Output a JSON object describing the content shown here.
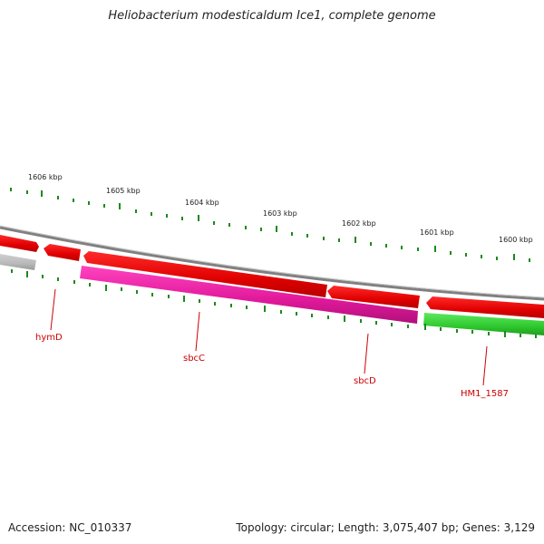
{
  "title": "Heliobacterium modesticaldum Ice1, complete genome",
  "scale": {
    "labels": [
      "1606 kbp",
      "1605 kbp",
      "1604 kbp",
      "1603 kbp",
      "1602 kbp",
      "1601 kbp",
      "1600 kbp"
    ],
    "tick_color": "#1b8a1b"
  },
  "genes": [
    {
      "name": "hymD",
      "color": "#e00000"
    },
    {
      "name": "sbcC",
      "color": "#e00000"
    },
    {
      "name": "sbcD",
      "color": "#e00000"
    },
    {
      "name": "HM1_1587",
      "color": "#e00000"
    }
  ],
  "colors": {
    "backbone": "#808080",
    "forward_gene": "#e00000",
    "reverse_gene_magenta": "#e0189a",
    "reverse_gene_green": "#2ec82e",
    "reverse_gene_gray": "#b8b8b8"
  },
  "footer": {
    "accession": "Accession: NC_010337",
    "stats": "Topology: circular; Length: 3,075,407 bp; Genes: 3,129"
  }
}
